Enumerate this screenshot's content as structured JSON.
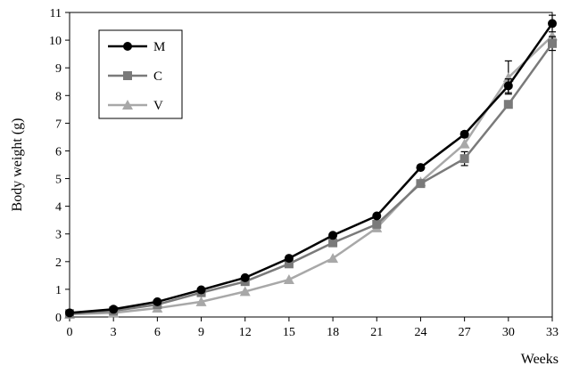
{
  "chart_data": {
    "type": "line",
    "xlabel": "Weeks",
    "ylabel": "Body weight (g)",
    "xlim": [
      0,
      33
    ],
    "ylim": [
      0,
      11
    ],
    "x": [
      0,
      3,
      6,
      9,
      12,
      15,
      18,
      21,
      24,
      27,
      30,
      33
    ],
    "x_ticks": [
      "0",
      "3",
      "6",
      "9",
      "12",
      "15",
      "18",
      "21",
      "24",
      "27",
      "30",
      "33"
    ],
    "y_ticks": [
      "0",
      "1",
      "2",
      "3",
      "4",
      "5",
      "6",
      "7",
      "8",
      "9",
      "10",
      "11"
    ],
    "grid": false,
    "legend_position": "top-left",
    "series": [
      {
        "name": "M",
        "marker": "circle",
        "color": "#000000",
        "values": [
          0.15,
          0.28,
          0.55,
          0.98,
          1.42,
          2.12,
          2.95,
          3.65,
          5.4,
          6.6,
          8.35,
          10.6
        ],
        "errors": [
          0,
          0,
          0,
          0,
          0,
          0,
          0,
          0,
          0,
          0.1,
          0.25,
          0.3
        ]
      },
      {
        "name": "C",
        "marker": "square",
        "color": "#7a7a7a",
        "values": [
          0.12,
          0.22,
          0.45,
          0.88,
          1.28,
          1.92,
          2.68,
          3.35,
          4.82,
          5.72,
          7.68,
          9.88
        ],
        "errors": [
          0,
          0,
          0,
          0,
          0,
          0,
          0,
          0,
          0.12,
          0.25,
          0,
          0.25
        ]
      },
      {
        "name": "V",
        "marker": "triangle",
        "color": "#a8a8a8",
        "values": [
          0.1,
          0.15,
          0.32,
          0.55,
          0.92,
          1.35,
          2.12,
          3.22,
          4.88,
          6.25,
          8.65,
          10.15
        ],
        "errors": [
          0,
          0,
          0,
          0,
          0,
          0,
          0,
          0,
          0,
          0,
          0.6,
          0
        ]
      }
    ]
  }
}
